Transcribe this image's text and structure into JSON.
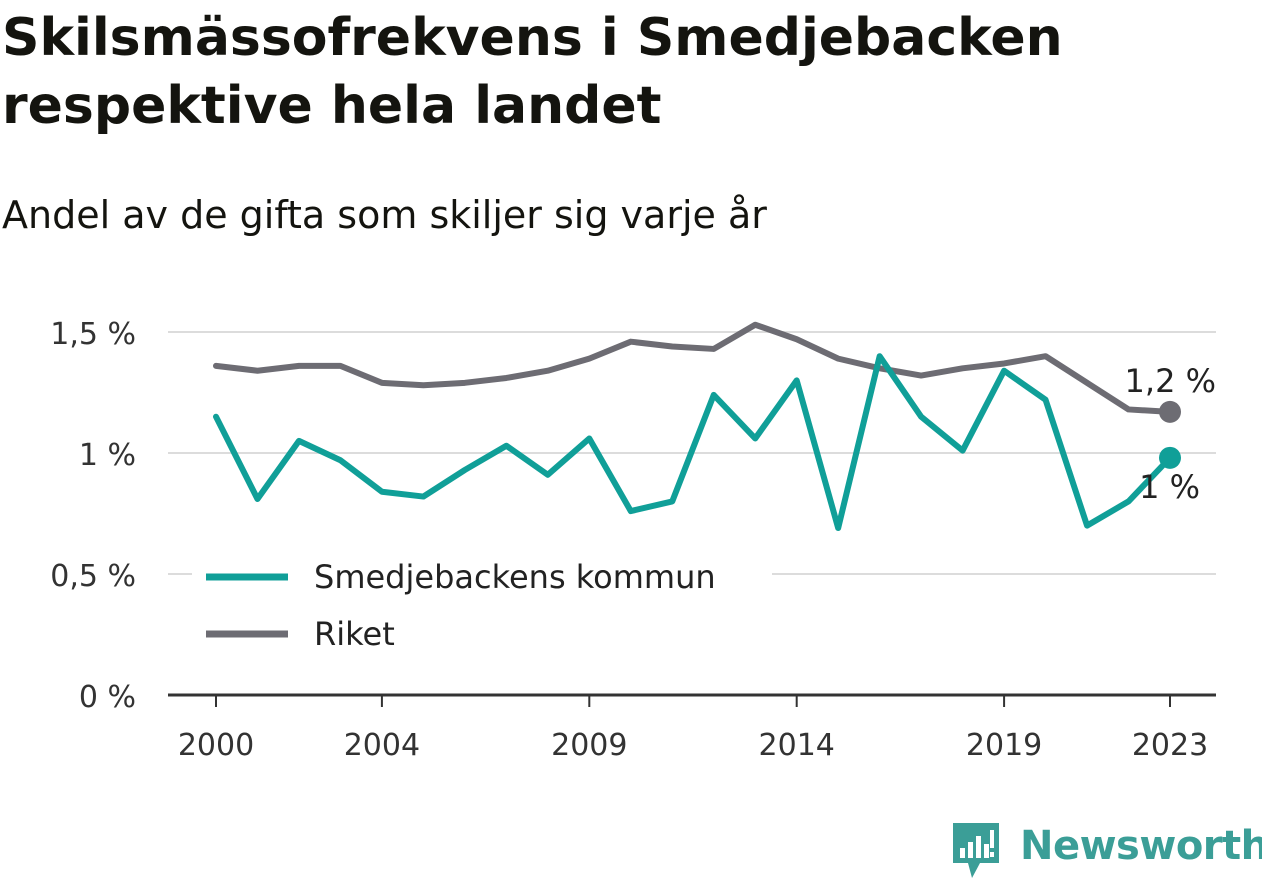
{
  "chart_data": {
    "type": "line",
    "title": "Skilsmässofrekvens i Smedjebacken respektive hela landet",
    "subtitle": "Andel av de gifta som skiljer sig varje år",
    "x": [
      2000,
      2001,
      2002,
      2003,
      2004,
      2005,
      2006,
      2007,
      2008,
      2009,
      2010,
      2011,
      2012,
      2013,
      2014,
      2015,
      2016,
      2017,
      2018,
      2019,
      2020,
      2021,
      2022,
      2023
    ],
    "x_tick_labels": [
      "2000",
      "2004",
      "2009",
      "2014",
      "2019",
      "2023"
    ],
    "x_tick_values": [
      2000,
      2004,
      2009,
      2014,
      2019,
      2023
    ],
    "y_ticks": [
      0,
      0.5,
      1,
      1.5
    ],
    "y_tick_labels": [
      "0 %",
      "0,5 %",
      "1 %",
      "1,5 %"
    ],
    "ylim": [
      0,
      1.55
    ],
    "grid": true,
    "legend_position": "bottom-left",
    "series": [
      {
        "name": "Smedjebackens kommun",
        "color": "#109f98",
        "values": [
          1.15,
          0.81,
          1.05,
          0.97,
          0.84,
          0.82,
          0.93,
          1.03,
          0.91,
          1.06,
          0.76,
          0.8,
          1.24,
          1.06,
          1.3,
          0.69,
          1.4,
          1.15,
          1.01,
          1.34,
          1.22,
          0.7,
          0.8,
          0.98
        ],
        "end_label": "1 %"
      },
      {
        "name": "Riket",
        "color": "#6d6c73",
        "values": [
          1.36,
          1.34,
          1.36,
          1.36,
          1.29,
          1.28,
          1.29,
          1.31,
          1.34,
          1.39,
          1.46,
          1.44,
          1.43,
          1.53,
          1.47,
          1.39,
          1.35,
          1.32,
          1.35,
          1.37,
          1.4,
          1.29,
          1.18,
          1.17
        ],
        "end_label": "1,2 %"
      }
    ]
  },
  "logo": {
    "text": "Newsworthy",
    "color": "#3b9e97"
  }
}
